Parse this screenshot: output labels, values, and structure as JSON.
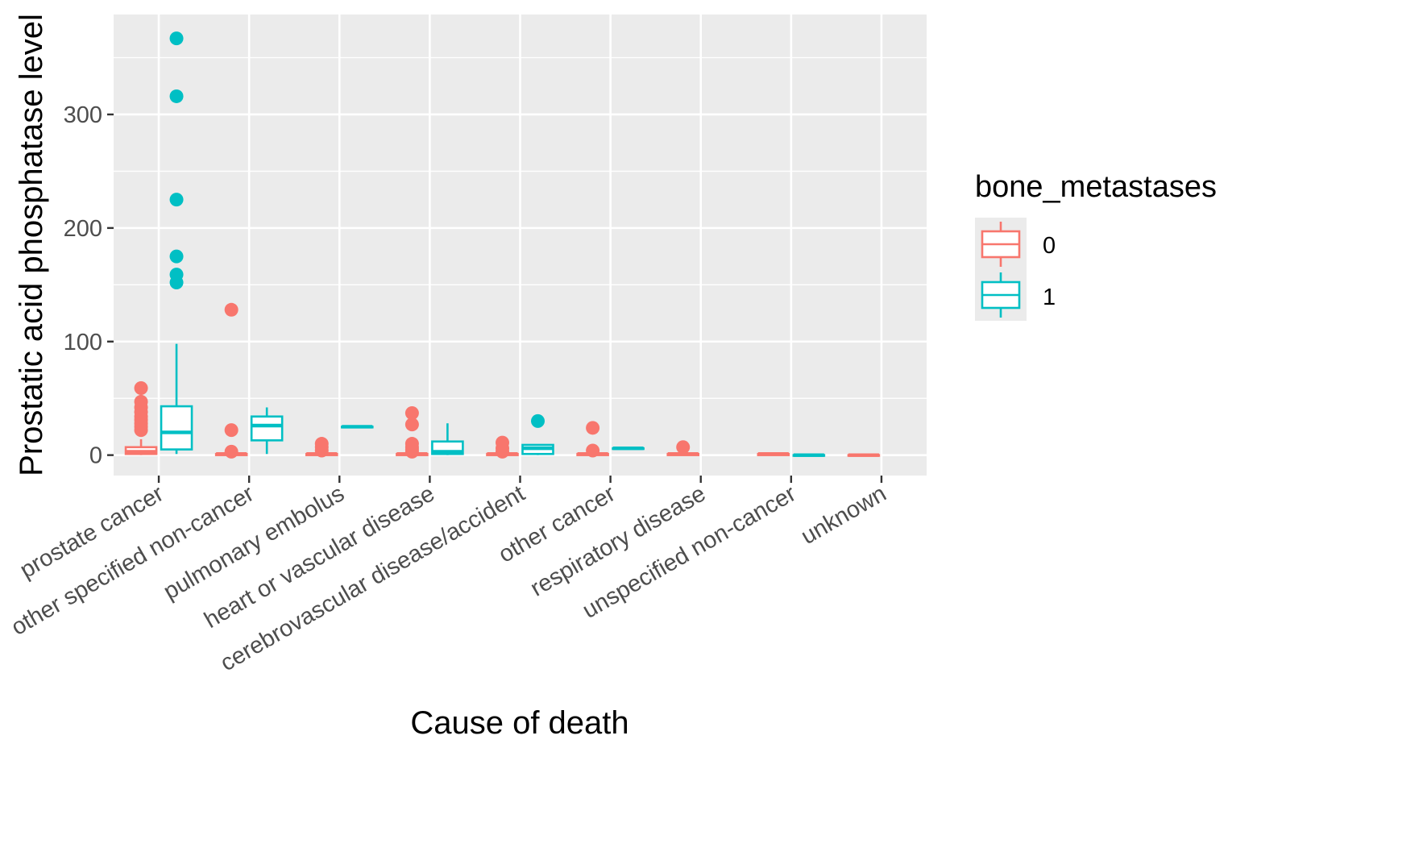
{
  "chart_data": {
    "type": "boxplot",
    "title": "",
    "xlabel": "Cause of death",
    "ylabel": "Prostatic acid phosphatase level",
    "ylim": [
      -18,
      388
    ],
    "yticks": [
      0,
      100,
      200,
      300
    ],
    "grid": true,
    "legend": {
      "title": "bone_metastases",
      "position": "right"
    },
    "categories": [
      "prostate cancer",
      "other specified non-cancer",
      "pulmonary embolus",
      "heart or vascular disease",
      "cerebrovascular disease/accident",
      "other cancer",
      "respiratory disease",
      "unspecified non-cancer",
      "unknown"
    ],
    "series": [
      {
        "name": "0",
        "color": "#F8766D",
        "boxes": [
          {
            "category": "prostate cancer",
            "whisker_low": 0,
            "q1": 1,
            "median": 3,
            "q3": 7,
            "whisker_high": 14,
            "outliers": [
              22,
              25,
              28,
              31,
              34,
              38,
              42,
              47,
              59
            ]
          },
          {
            "category": "other specified non-cancer",
            "whisker_low": 0,
            "q1": 0,
            "median": 1,
            "q3": 1,
            "whisker_high": 2,
            "outliers": [
              3,
              22,
              128
            ]
          },
          {
            "category": "pulmonary embolus",
            "whisker_low": 0,
            "q1": 0,
            "median": 1,
            "q3": 1,
            "whisker_high": 2,
            "outliers": [
              4,
              7,
              10
            ]
          },
          {
            "category": "heart or vascular disease",
            "whisker_low": 0,
            "q1": 0,
            "median": 1,
            "q3": 1,
            "whisker_high": 2,
            "outliers": [
              3,
              5,
              7,
              10,
              27,
              37
            ]
          },
          {
            "category": "cerebrovascular disease/accident",
            "whisker_low": 0,
            "q1": 0,
            "median": 1,
            "q3": 1,
            "whisker_high": 2,
            "outliers": [
              3,
              6,
              11
            ]
          },
          {
            "category": "other cancer",
            "whisker_low": 0,
            "q1": 0,
            "median": 1,
            "q3": 1,
            "whisker_high": 2,
            "outliers": [
              4,
              24
            ]
          },
          {
            "category": "respiratory disease",
            "whisker_low": 0,
            "q1": 0,
            "median": 1,
            "q3": 1,
            "whisker_high": 2,
            "outliers": [
              7
            ]
          },
          {
            "category": "unspecified non-cancer",
            "whisker_low": 0,
            "q1": 0,
            "median": 1,
            "q3": 1,
            "whisker_high": 1,
            "outliers": []
          },
          {
            "category": "unknown",
            "whisker_low": 0,
            "q1": 0,
            "median": 0,
            "q3": 0,
            "whisker_high": 0,
            "outliers": []
          }
        ]
      },
      {
        "name": "1",
        "color": "#00BFC4",
        "boxes": [
          {
            "category": "prostate cancer",
            "whisker_low": 1,
            "q1": 5,
            "median": 20,
            "q3": 43,
            "whisker_high": 98,
            "outliers": [
              152,
              159,
              175,
              225,
              316,
              367
            ]
          },
          {
            "category": "other specified non-cancer",
            "whisker_low": 1,
            "q1": 13,
            "median": 26,
            "q3": 34,
            "whisker_high": 42,
            "outliers": []
          },
          {
            "category": "pulmonary embolus",
            "whisker_low": 25,
            "q1": 25,
            "median": 25,
            "q3": 25,
            "whisker_high": 25,
            "outliers": []
          },
          {
            "category": "heart or vascular disease",
            "whisker_low": 0,
            "q1": 1,
            "median": 3,
            "q3": 12,
            "whisker_high": 28,
            "outliers": []
          },
          {
            "category": "cerebrovascular disease/accident",
            "whisker_low": 0,
            "q1": 1,
            "median": 6,
            "q3": 9,
            "whisker_high": 9,
            "outliers": [
              30
            ]
          },
          {
            "category": "other cancer",
            "whisker_low": 6,
            "q1": 6,
            "median": 6,
            "q3": 6,
            "whisker_high": 6,
            "outliers": []
          },
          {
            "category": "unspecified non-cancer",
            "whisker_low": 0,
            "q1": 0,
            "median": 0,
            "q3": 0,
            "whisker_high": 0,
            "outliers": []
          }
        ]
      }
    ]
  }
}
